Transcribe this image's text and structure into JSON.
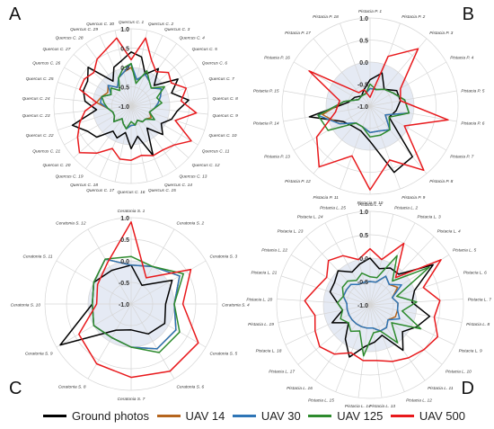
{
  "legend": {
    "items": [
      {
        "label": "Ground photos",
        "color": "#000000"
      },
      {
        "label": "UAV 14",
        "color": "#b5651d"
      },
      {
        "label": "UAV 30",
        "color": "#2e75b6"
      },
      {
        "label": "UAV 125",
        "color": "#2e8b2e"
      },
      {
        "label": "UAV 500",
        "color": "#e8191c"
      }
    ]
  },
  "chart_data": [
    {
      "type": "radar",
      "panel_label": "A",
      "rlim": [
        -1,
        1
      ],
      "ticks": [
        "1.0",
        "0.5",
        "0.0",
        "-0.5",
        "-1.0"
      ],
      "categories": [
        "Quercus C. 1",
        "Quercus C. 2",
        "Quercus C. 3",
        "Quercus C. 4",
        "Quercus C. 5",
        "Quercus C. 6",
        "Quercus C. 7",
        "Quercus C. 8",
        "Quercus C. 9",
        "Quercus C. 10",
        "Quercus C. 11",
        "Quercus C. 12",
        "Quercus C. 13",
        "Quercus C. 14",
        "Quercus C. 15",
        "Quercus C. 16",
        "Quercus C. 17",
        "Quercus C. 18",
        "Quercus C. 19",
        "Quercus C. 20",
        "Quercus C. 21",
        "Quercus C. 22",
        "Quercus C. 23",
        "Quercus C. 24",
        "Quercus C. 25",
        "Quercus C. 26",
        "Quercus C. 27",
        "Quercus C. 28",
        "Quercus C. 29",
        "Quercus C. 30"
      ],
      "series": [
        {
          "name": "Ground photos",
          "color": "#000000",
          "values": [
            0.4,
            0.3,
            -0.1,
            0.2,
            -0.2,
            0.4,
            0.1,
            0.5,
            0.2,
            0.1,
            -0.1,
            0.1,
            -0.3,
            0.4,
            -0.2,
            0.1,
            -0.3,
            -0.1,
            -0.2,
            0.2,
            0.3,
            0.6,
            -0.1,
            0.2,
            0.3,
            0.3,
            0.5,
            -0.2,
            0.1,
            0.2
          ]
        },
        {
          "name": "UAV 14",
          "color": "#b5651d",
          "values": [
            0.0,
            -0.3,
            -0.1,
            -0.2,
            -0.3,
            -0.1,
            -0.2,
            -0.3,
            -0.4,
            -0.5,
            -0.4,
            -0.5,
            -0.5,
            -0.6,
            -0.5,
            -0.5,
            -0.4,
            -0.5,
            -0.6,
            -0.4,
            -0.5,
            -0.5,
            -0.4,
            -0.1,
            -0.2,
            -0.3,
            -0.2,
            -0.4,
            -0.2,
            -0.1
          ]
        },
        {
          "name": "UAV 30",
          "color": "#2e75b6",
          "values": [
            0.1,
            -0.3,
            -0.1,
            -0.2,
            -0.3,
            -0.1,
            -0.2,
            -0.3,
            -0.4,
            -0.5,
            -0.3,
            -0.5,
            -0.5,
            -0.6,
            -0.5,
            -0.5,
            -0.4,
            -0.5,
            -0.6,
            -0.4,
            -0.5,
            -0.5,
            -0.4,
            -0.2,
            -0.2,
            -0.4,
            -0.2,
            -0.4,
            -0.2,
            -0.1
          ]
        },
        {
          "name": "UAV 125",
          "color": "#2e8b2e",
          "values": [
            0.1,
            -0.4,
            0.0,
            -0.2,
            -0.3,
            0.0,
            -0.3,
            -0.2,
            -0.4,
            -0.5,
            -0.3,
            -0.5,
            -0.5,
            -0.6,
            -0.5,
            -0.6,
            -0.4,
            -0.5,
            -0.6,
            -0.4,
            -0.5,
            -0.5,
            -0.4,
            -0.3,
            -0.2,
            -0.4,
            -0.3,
            -0.5,
            -0.2,
            0.0
          ]
        },
        {
          "name": "UAV 500",
          "color": "#e8191c",
          "values": [
            0.2,
            0.8,
            0.3,
            0.1,
            0.3,
            0.2,
            0.5,
            0.3,
            0.7,
            0.2,
            0.8,
            0.5,
            0.4,
            0.4,
            0.3,
            0.4,
            0.4,
            0.2,
            0.5,
            0.8,
            0.6,
            0.4,
            0.2,
            -0.1,
            0.4,
            0.4,
            0.3,
            0.5,
            0.6,
            0.8
          ]
        }
      ]
    },
    {
      "type": "radar",
      "panel_label": "B",
      "rlim": [
        -1,
        1
      ],
      "ticks": [
        "1.0",
        "0.5",
        "0.0",
        "-0.5",
        "-1.0"
      ],
      "categories": [
        "Pistacia P. 1",
        "Pistacia P. 2",
        "Pistacia P. 3",
        "Pistacia P. 4",
        "Pistacia P. 5",
        "Pistacia P. 6",
        "Pistacia P. 7",
        "Pistacia P. 8",
        "Pistacia P. 9",
        "Pistacia P. 10",
        "Pistacia P. 11",
        "Pistacia P. 12",
        "Pistacia P. 13",
        "Pistacia P. 14",
        "Pistacia P. 15",
        "Pistacia P. 16",
        "Pistacia P. 17",
        "Pistacia P. 18"
      ],
      "series": [
        {
          "name": "Ground photos",
          "color": "#000000",
          "values": [
            -0.4,
            -0.2,
            -0.5,
            -0.3,
            -0.3,
            -0.4,
            -0.5,
            0.5,
            0.6,
            -0.2,
            -0.4,
            -0.4,
            -0.3,
            0.4,
            -0.5,
            -0.6,
            -0.7,
            -0.6
          ]
        },
        {
          "name": "UAV 14",
          "color": "#b5651d",
          "values": [
            -0.6,
            -0.6,
            -0.5,
            -0.4,
            -0.2,
            -0.1,
            -0.6,
            -0.3,
            -0.4,
            -0.4,
            -0.5,
            -0.5,
            -0.2,
            0.1,
            -0.4,
            -0.7,
            -0.7,
            -0.7
          ]
        },
        {
          "name": "UAV 30",
          "color": "#2e75b6",
          "values": [
            -0.6,
            -0.6,
            -0.5,
            -0.4,
            -0.2,
            -0.1,
            -0.6,
            -0.3,
            -0.4,
            -0.4,
            -0.5,
            -0.5,
            -0.2,
            0.2,
            -0.4,
            -0.7,
            -0.7,
            -0.7
          ]
        },
        {
          "name": "UAV 125",
          "color": "#2e8b2e",
          "values": [
            -0.5,
            -0.6,
            -0.5,
            -0.4,
            -0.2,
            -0.1,
            -0.5,
            -0.3,
            -0.3,
            -0.3,
            -0.5,
            -0.5,
            0.1,
            0.2,
            -0.4,
            -0.7,
            -0.7,
            -0.7
          ]
        },
        {
          "name": "UAV 500",
          "color": "#e8191c",
          "values": [
            -0.8,
            0.2,
            0.7,
            -0.2,
            -0.3,
            0.8,
            -0.1,
            0.9,
            0.3,
            0.9,
            0.2,
            0.8,
            0.4,
            -0.2,
            -0.3,
            0.6,
            -0.6,
            -0.6
          ]
        }
      ]
    },
    {
      "type": "radar",
      "panel_label": "C",
      "rlim": [
        -1,
        1
      ],
      "ticks": [
        "1.0",
        "0.5",
        "0.0",
        "-0.5",
        "-1.0"
      ],
      "categories": [
        "Ceratonia S. 1",
        "Ceratonia S. 2",
        "Ceratonia S. 3",
        "Ceratonia S. 4",
        "Ceratonia S. 5",
        "Ceratonia S. 6",
        "Ceratonia S. 7",
        "Ceratonia S. 8",
        "Ceratonia S. 9",
        "Ceratonia S. 10",
        "Ceratonia S. 11",
        "Ceratonia S. 12"
      ],
      "series": [
        {
          "name": "Ground photos",
          "color": "#000000",
          "values": [
            -0.1,
            -0.5,
            0.1,
            -0.2,
            -0.1,
            -0.2,
            -0.4,
            -0.3,
            0.9,
            -0.1,
            0.0,
            -0.1
          ]
        },
        {
          "name": "UAV 14",
          "color": "#b5651d",
          "values": [
            -0.1,
            0.0,
            0.3,
            0.0,
            0.2,
            0.2,
            0.0,
            -0.1,
            0.0,
            -0.1,
            0.0,
            0.2
          ]
        },
        {
          "name": "UAV 30",
          "color": "#2e75b6",
          "values": [
            -0.1,
            0.0,
            0.3,
            0.0,
            0.2,
            0.2,
            0.0,
            -0.1,
            0.0,
            -0.1,
            0.0,
            0.2
          ]
        },
        {
          "name": "UAV 125",
          "color": "#2e8b2e",
          "values": [
            0.1,
            0.0,
            0.4,
            0.0,
            0.3,
            0.3,
            0.0,
            -0.1,
            0.0,
            -0.1,
            0.0,
            0.2
          ]
        },
        {
          "name": "UAV 500",
          "color": "#e8191c",
          "values": [
            0.9,
            -0.3,
            0.6,
            0.2,
            0.8,
            0.8,
            0.7,
            0.6,
            0.4,
            -0.2,
            -0.1,
            0.1
          ]
        }
      ]
    },
    {
      "type": "radar",
      "panel_label": "D",
      "rlim": [
        -1,
        1
      ],
      "ticks": [
        "1.0",
        "0.5",
        "0.0",
        "-0.5",
        "-1.0"
      ],
      "categories": [
        "Pistacia L. 1",
        "Pistacia L. 2",
        "Pistacia L. 3",
        "Pistacia L. 4",
        "Pistacia L. 5",
        "Pistacia L. 6",
        "Pistacia L. 7",
        "Pistacia L. 8",
        "Pistacia L. 9",
        "Pistacia L. 10",
        "Pistacia L. 11",
        "Pistacia L. 12",
        "Pistacia L. 13",
        "Pistacia L. 14",
        "Pistacia L. 15",
        "Pistacia L. 16",
        "Pistacia L. 17",
        "Pistacia L. 18",
        "Pistacia L. 19",
        "Pistacia L. 20",
        "Pistacia L. 21",
        "Pistacia L. 22",
        "Pistacia L. 23",
        "Pistacia L. 24",
        "Pistacia L. 25"
      ],
      "series": [
        {
          "name": "Ground photos",
          "color": "#000000",
          "values": [
            0.0,
            -0.2,
            -0.1,
            -0.1,
            0.6,
            0.0,
            -0.1,
            0.3,
            0.1,
            -0.1,
            0.2,
            -0.3,
            -0.2,
            -0.1,
            0.2,
            -0.1,
            -0.4,
            -0.1,
            -0.4,
            -0.3,
            -0.1,
            -0.1,
            0.0,
            -0.2,
            -0.1
          ]
        },
        {
          "name": "UAV 14",
          "color": "#b5651d",
          "values": [
            -0.5,
            -0.5,
            -0.3,
            -0.4,
            -0.3,
            -0.5,
            -0.4,
            -0.4,
            -0.4,
            -0.5,
            -0.4,
            -0.4,
            -0.5,
            -0.5,
            -0.5,
            -0.5,
            -0.5,
            -0.5,
            -0.5,
            -0.5,
            -0.4,
            -0.4,
            -0.4,
            -0.5,
            -0.5
          ]
        },
        {
          "name": "UAV 30",
          "color": "#2e75b6",
          "values": [
            -0.5,
            -0.5,
            -0.3,
            -0.4,
            -0.2,
            -0.5,
            -0.4,
            -0.4,
            -0.3,
            -0.5,
            -0.4,
            -0.4,
            -0.5,
            -0.5,
            -0.5,
            -0.5,
            -0.5,
            -0.5,
            -0.5,
            -0.5,
            -0.4,
            -0.4,
            -0.4,
            -0.5,
            -0.5
          ]
        },
        {
          "name": "UAV 125",
          "color": "#2e8b2e",
          "values": [
            -0.4,
            -0.4,
            0.2,
            -0.3,
            0.5,
            -0.4,
            0.0,
            -0.3,
            0.2,
            -0.4,
            0.0,
            -0.4,
            -0.4,
            0.1,
            -0.4,
            -0.3,
            -0.4,
            -0.3,
            -0.4,
            -0.3,
            -0.4,
            -0.3,
            -0.3,
            -0.4,
            -0.3
          ]
        },
        {
          "name": "UAV 500",
          "color": "#e8191c",
          "values": [
            0.2,
            0.0,
            0.5,
            -0.2,
            0.8,
            0.2,
            0.5,
            0.4,
            0.6,
            0.5,
            0.4,
            0.3,
            0.2,
            0.2,
            0.1,
            0.3,
            0.4,
            0.3,
            0.2,
            0.4,
            0.2,
            0.1,
            0.3,
            0.2,
            0.0
          ]
        }
      ]
    }
  ]
}
